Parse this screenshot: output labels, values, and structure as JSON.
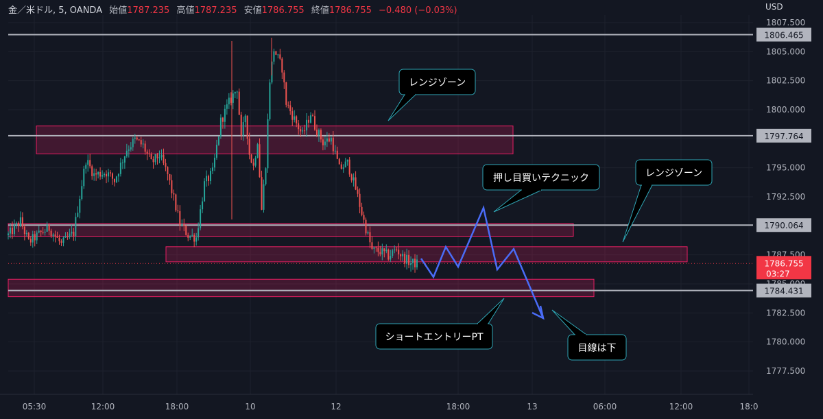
{
  "header": {
    "symbol": "金／米ドル, 5, OANDA",
    "open_label": "始値",
    "open": "1787.235",
    "high_label": "高値",
    "high": "1787.235",
    "low_label": "安値",
    "low": "1786.755",
    "close_label": "終値",
    "close": "1786.755",
    "change": "−0.480 (−0.03%)"
  },
  "colors": {
    "background": "#131722",
    "up": "#26a69a",
    "down": "#ef5350",
    "zone_fill": "rgba(233,30,99,0.22)",
    "zone_border": "#e91e63",
    "hline": "#b2b5be",
    "projection": "#4a6cf7",
    "price_badge": "#f23645"
  },
  "chart_data": {
    "type": "candlestick",
    "currency": "USD",
    "x_ticks": [
      "05:30",
      "12:00",
      "18:00",
      "10",
      "12",
      "18:00",
      "13",
      "06:00",
      "12:00",
      "18:0"
    ],
    "y_ticks": [
      "1807.500",
      "1805.000",
      "1802.500",
      "1800.000",
      "1797.500",
      "1795.000",
      "1792.500",
      "1790.000",
      "1787.500",
      "1785.000",
      "1782.500",
      "1780.000",
      "1777.500"
    ],
    "ylim": [
      1776.1,
      1808.2
    ],
    "horizontal_lines": [
      1806.465,
      1797.764,
      1790.064,
      1784.431
    ],
    "current_price": "1786.755",
    "countdown": "03:27",
    "zones": [
      {
        "from": 1796.2,
        "to": 1798.6
      },
      {
        "from": 1789.1,
        "to": 1790.2
      },
      {
        "from": 1786.9,
        "to": 1788.2
      },
      {
        "from": 1783.9,
        "to": 1785.4
      }
    ],
    "path": [
      [
        0,
        1789.2
      ],
      [
        6,
        1790.4
      ],
      [
        10,
        1788.6
      ],
      [
        16,
        1789.4
      ],
      [
        20,
        1789.8
      ],
      [
        26,
        1788.4
      ],
      [
        32,
        1789.4
      ],
      [
        38,
        1795.7
      ],
      [
        42,
        1794.4
      ],
      [
        48,
        1794.6
      ],
      [
        52,
        1793.9
      ],
      [
        58,
        1796.6
      ],
      [
        62,
        1797.4
      ],
      [
        66,
        1796.9
      ],
      [
        70,
        1795.4
      ],
      [
        74,
        1796.1
      ],
      [
        78,
        1794.4
      ],
      [
        84,
        1790.2
      ],
      [
        88,
        1789.2
      ],
      [
        92,
        1789.0
      ],
      [
        96,
        1793.6
      ],
      [
        100,
        1794.6
      ],
      [
        104,
        1799.0
      ],
      [
        108,
        1800.6
      ],
      [
        112,
        1801.9
      ],
      [
        114,
        1797.4
      ],
      [
        116,
        1799.6
      ],
      [
        118,
        1796.2
      ],
      [
        120,
        1795.1
      ],
      [
        122,
        1797.4
      ],
      [
        124,
        1791.4
      ],
      [
        126,
        1795.4
      ],
      [
        128,
        1802.6
      ],
      [
        130,
        1805.2
      ],
      [
        134,
        1803.6
      ],
      [
        136,
        1800.6
      ],
      [
        140,
        1799.2
      ],
      [
        144,
        1797.8
      ],
      [
        148,
        1799.7
      ],
      [
        150,
        1798.6
      ],
      [
        154,
        1797.2
      ],
      [
        158,
        1797.5
      ],
      [
        162,
        1794.9
      ],
      [
        166,
        1795.4
      ],
      [
        170,
        1793.2
      ],
      [
        174,
        1790.4
      ],
      [
        178,
        1787.9
      ],
      [
        182,
        1787.8
      ],
      [
        186,
        1787.4
      ],
      [
        190,
        1788.0
      ],
      [
        193,
        1787.3
      ],
      [
        197,
        1786.8
      ],
      [
        200,
        1786.755
      ]
    ],
    "annotations": [
      "レンジゾーン",
      "押し目買いテクニック",
      "レンジゾーン",
      "ショートエントリーPT",
      "目線は下"
    ]
  }
}
